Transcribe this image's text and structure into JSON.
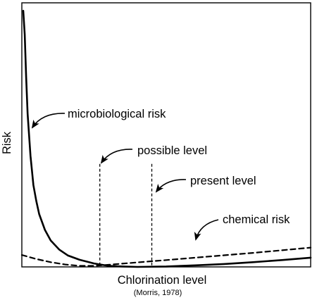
{
  "chart_data": {
    "type": "line",
    "title": "",
    "xlabel": "Chlorination level",
    "ylabel": "Risk",
    "source_note": "(Morris, 1978)",
    "x_ticks": [],
    "y_ticks": [],
    "grid": false,
    "legend": "none",
    "series": [
      {
        "id": "microbiological",
        "style": "solid",
        "points": [
          [
            0.5,
            97
          ],
          [
            1,
            88
          ],
          [
            1.5,
            72
          ],
          [
            2,
            58
          ],
          [
            3,
            42
          ],
          [
            4,
            31
          ],
          [
            5,
            25
          ],
          [
            6,
            20
          ],
          [
            8,
            14
          ],
          [
            10,
            10
          ],
          [
            13,
            6.5
          ],
          [
            16,
            4.3
          ],
          [
            20,
            2.7
          ],
          [
            25,
            1.3
          ],
          [
            30,
            0.4
          ],
          [
            35,
            0.15
          ],
          [
            40,
            0
          ],
          [
            50,
            0.15
          ],
          [
            60,
            0.6
          ],
          [
            70,
            1.1
          ],
          [
            80,
            1.8
          ],
          [
            90,
            2.6
          ],
          [
            100,
            3.5
          ]
        ]
      },
      {
        "id": "chemical",
        "style": "dashed",
        "points": [
          [
            0,
            4.5
          ],
          [
            5,
            3
          ],
          [
            10,
            1.8
          ],
          [
            15,
            0.9
          ],
          [
            20,
            0.4
          ],
          [
            25,
            0.4
          ],
          [
            30,
            0.8
          ],
          [
            40,
            1.7
          ],
          [
            50,
            2.6
          ],
          [
            60,
            3.5
          ],
          [
            70,
            4.4
          ],
          [
            80,
            5.3
          ],
          [
            90,
            6.3
          ],
          [
            100,
            7.3
          ]
        ]
      }
    ],
    "markers": [
      {
        "id": "possible",
        "x": 27,
        "top": 39
      },
      {
        "id": "present",
        "x": 45,
        "top": 39
      }
    ],
    "annotations": [
      {
        "id": "microbiological",
        "text": "microbiological risk"
      },
      {
        "id": "possible",
        "text": "possible level"
      },
      {
        "id": "present",
        "text": "present level"
      },
      {
        "id": "chemical",
        "text": "chemical risk"
      }
    ]
  }
}
